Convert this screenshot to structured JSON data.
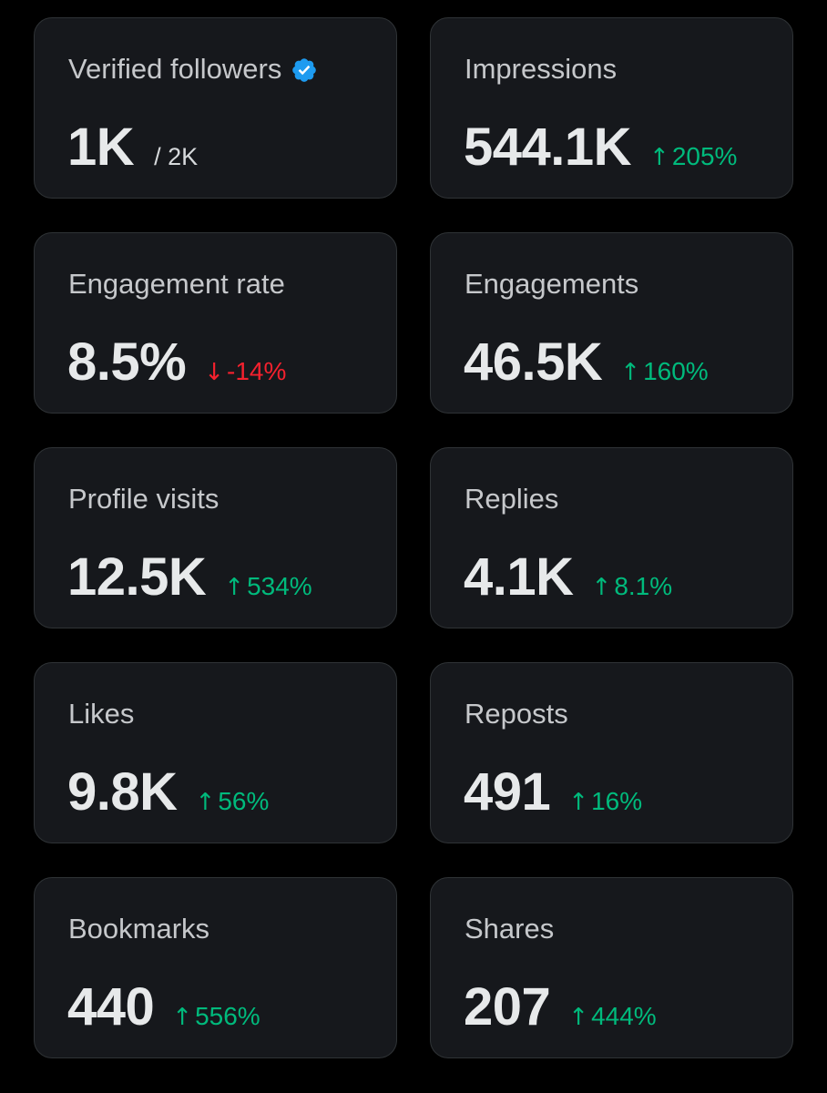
{
  "metrics": [
    {
      "label": "Verified followers",
      "value": "1K",
      "sub": "/ 2K",
      "verified": true
    },
    {
      "label": "Impressions",
      "value": "544.1K",
      "change": {
        "text": "205%",
        "direction": "up"
      }
    },
    {
      "label": "Engagement rate",
      "value": "8.5%",
      "change": {
        "text": "-14%",
        "direction": "down"
      }
    },
    {
      "label": "Engagements",
      "value": "46.5K",
      "change": {
        "text": "160%",
        "direction": "up"
      }
    },
    {
      "label": "Profile visits",
      "value": "12.5K",
      "change": {
        "text": "534%",
        "direction": "up"
      }
    },
    {
      "label": "Replies",
      "value": "4.1K",
      "change": {
        "text": "8.1%",
        "direction": "up"
      }
    },
    {
      "label": "Likes",
      "value": "9.8K",
      "change": {
        "text": "56%",
        "direction": "up"
      }
    },
    {
      "label": "Reposts",
      "value": "491",
      "change": {
        "text": "16%",
        "direction": "up"
      }
    },
    {
      "label": "Bookmarks",
      "value": "440",
      "change": {
        "text": "556%",
        "direction": "up"
      }
    },
    {
      "label": "Shares",
      "value": "207",
      "change": {
        "text": "444%",
        "direction": "up"
      }
    }
  ],
  "icons": {
    "verified": "verified-badge-icon",
    "up": "arrow-up-icon",
    "down": "arrow-down-icon"
  },
  "colors": {
    "background": "#000000",
    "card": "#16181c",
    "card_border": "#2f3336",
    "label": "#c6c8cb",
    "value": "#e7e9ea",
    "up": "#00ba7c",
    "down": "#f4212e",
    "verified": "#1d9bf0"
  }
}
